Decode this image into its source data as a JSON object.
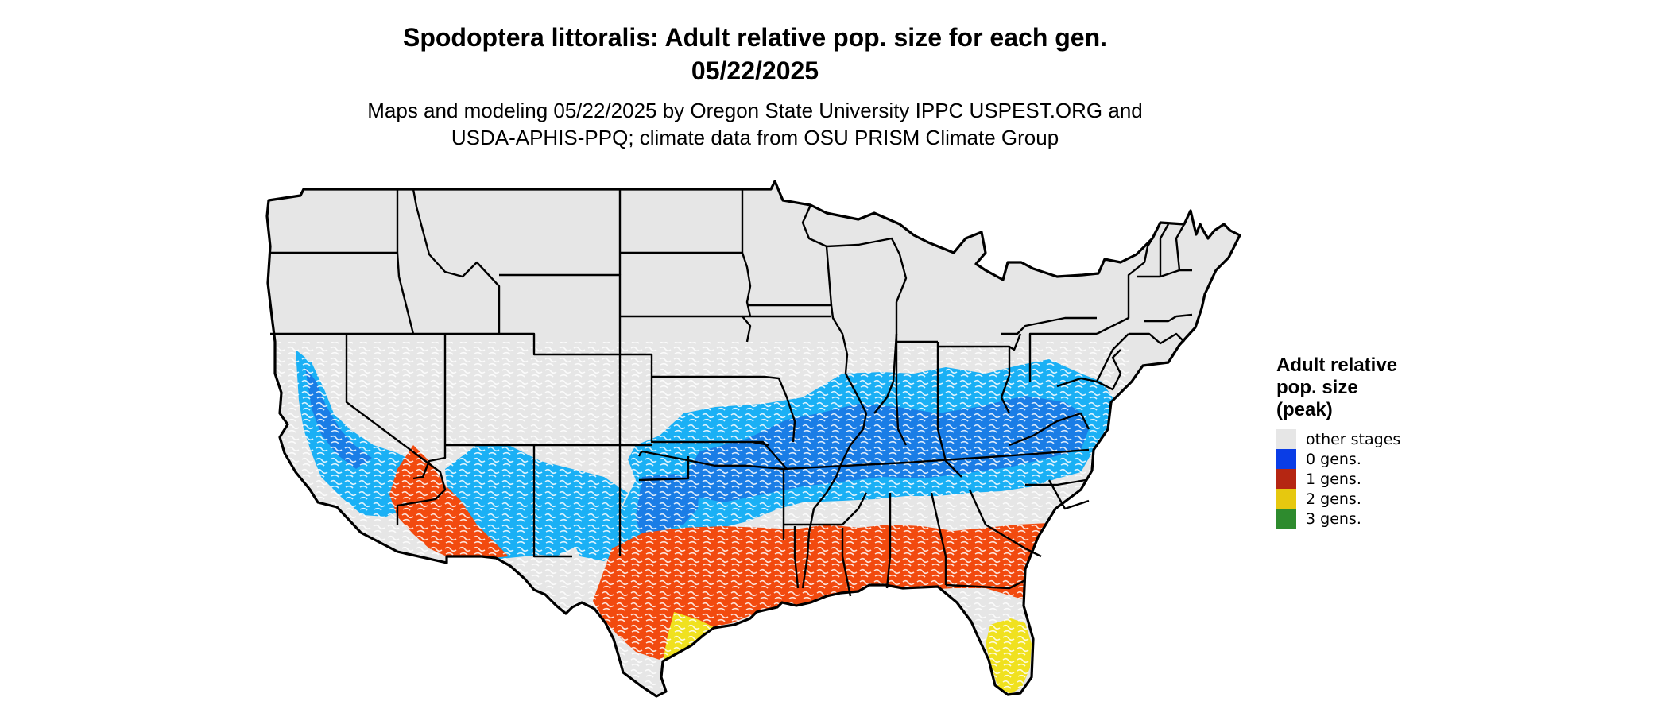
{
  "map": {
    "title_line1": "Spodoptera littoralis: Adult relative pop. size for each gen.",
    "title_line2": "05/22/2025",
    "subtitle_line1": "Maps and modeling 05/22/2025 by Oregon State University IPPC USPEST.ORG and",
    "subtitle_line2": "USDA-APHIS-PPQ; climate data from OSU PRISM Climate Group",
    "region": "United States (contiguous)",
    "base_color": "#e6e6e6",
    "border_color": "#000000",
    "zones": {
      "0_gens_light": "#1ab0f5",
      "0_gens_dark": "#1a7de6",
      "1_gens": "#f24a0f",
      "2_gens": "#f0e11f",
      "3_gens": "#2e9b2e"
    }
  },
  "legend": {
    "title_line1": "Adult relative",
    "title_line2": "pop. size",
    "title_line3": "(peak)",
    "items": [
      {
        "label": "other stages",
        "color": "#e6e6e6"
      },
      {
        "label": "0 gens.",
        "color": "#0a3de6"
      },
      {
        "label": "1 gens.",
        "color": "#b52612"
      },
      {
        "label": "2 gens.",
        "color": "#e6c80f"
      },
      {
        "label": "3 gens.",
        "color": "#2e8b2e"
      }
    ]
  }
}
